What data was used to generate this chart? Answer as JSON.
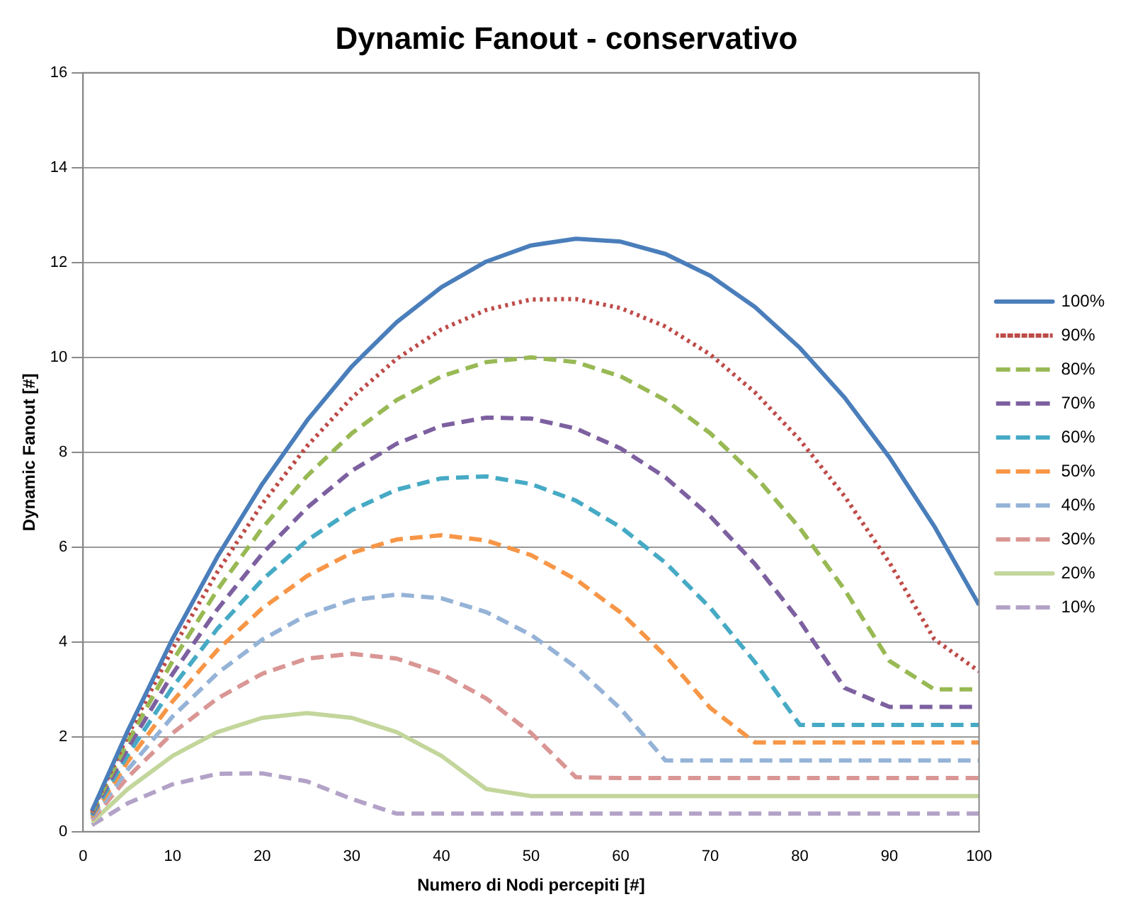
{
  "chart_data": {
    "type": "line",
    "title": "Dynamic Fanout - conservativo",
    "xlabel": "Numero di Nodi percepiti [#]",
    "ylabel": "Dynamic Fanout [#]",
    "x": [
      1,
      5,
      10,
      15,
      20,
      25,
      30,
      35,
      40,
      45,
      50,
      55,
      60,
      65,
      70,
      75,
      80,
      85,
      90,
      95,
      100
    ],
    "xlim": [
      0,
      100
    ],
    "xticks": [
      0,
      10,
      20,
      30,
      40,
      50,
      60,
      70,
      80,
      90,
      100
    ],
    "ylim": [
      0,
      16
    ],
    "yticks": [
      0,
      2,
      4,
      6,
      8,
      10,
      12,
      14,
      16
    ],
    "grid": "y",
    "legend": "right",
    "marker": "none",
    "series": [
      {
        "name": "100%",
        "color": "#4a7ebb",
        "line_style": "solid",
        "values": [
          0.44,
          2.13,
          4.07,
          5.8,
          7.33,
          8.67,
          9.81,
          10.74,
          11.48,
          12.02,
          12.36,
          12.5,
          12.44,
          12.18,
          11.72,
          11.06,
          10.2,
          9.15,
          7.89,
          6.44,
          4.78
        ]
      },
      {
        "name": "90%",
        "color": "#be4b48",
        "line_style": "dotted",
        "values": [
          0.42,
          2.03,
          3.86,
          5.48,
          6.91,
          8.13,
          9.15,
          9.97,
          10.59,
          11,
          11.22,
          11.23,
          11.04,
          10.65,
          10.06,
          9.26,
          8.26,
          7.07,
          5.67,
          4.06,
          3.38
        ]
      },
      {
        "name": "80%",
        "color": "#98b954",
        "line_style": "dashed",
        "values": [
          0.4,
          1.9,
          3.6,
          5.1,
          6.4,
          7.5,
          8.4,
          9.1,
          9.6,
          9.9,
          10,
          9.9,
          9.6,
          9.1,
          8.4,
          7.5,
          6.4,
          5.1,
          3.6,
          3,
          3
        ]
      },
      {
        "name": "70%",
        "color": "#7d60a0",
        "line_style": "dashed",
        "values": [
          0.37,
          1.76,
          3.33,
          4.69,
          5.86,
          6.83,
          7.61,
          8.18,
          8.56,
          8.73,
          8.71,
          8.5,
          8.08,
          7.47,
          6.65,
          5.64,
          4.44,
          3.03,
          2.63,
          2.63,
          2.63
        ]
      },
      {
        "name": "60%",
        "color": "#46aac5",
        "line_style": "dashed",
        "values": [
          0.34,
          1.62,
          3.05,
          4.28,
          5.31,
          6.14,
          6.78,
          7.21,
          7.45,
          7.49,
          7.33,
          6.98,
          6.42,
          5.67,
          4.72,
          3.57,
          2.25,
          2.25,
          2.25,
          2.25,
          2.25
        ]
      },
      {
        "name": "50%",
        "color": "#f79646",
        "line_style": "dashed",
        "values": [
          0.31,
          1.48,
          2.75,
          3.83,
          4.71,
          5.39,
          5.88,
          6.16,
          6.25,
          6.14,
          5.83,
          5.32,
          4.62,
          3.71,
          2.61,
          1.88,
          1.88,
          1.88,
          1.88,
          1.88,
          1.88
        ]
      },
      {
        "name": "40%",
        "color": "#95b3d7",
        "line_style": "dashed",
        "values": [
          0.28,
          1.31,
          2.43,
          3.34,
          4.05,
          4.57,
          4.88,
          5,
          4.92,
          4.63,
          4.15,
          3.47,
          2.59,
          1.5,
          1.5,
          1.5,
          1.5,
          1.5,
          1.5,
          1.5,
          1.5
        ]
      },
      {
        "name": "30%",
        "color": "#d99694",
        "line_style": "dashed",
        "values": [
          0.25,
          1.15,
          2.08,
          2.81,
          3.33,
          3.65,
          3.75,
          3.65,
          3.33,
          2.81,
          2.08,
          1.15,
          1.13,
          1.13,
          1.13,
          1.13,
          1.13,
          1.13,
          1.13,
          1.13,
          1.13
        ]
      },
      {
        "name": "20%",
        "color": "#c3d69b",
        "line_style": "solid",
        "values": [
          0.2,
          0.9,
          1.6,
          2.1,
          2.4,
          2.5,
          2.4,
          2.1,
          1.6,
          0.9,
          0.75,
          0.75,
          0.75,
          0.75,
          0.75,
          0.75,
          0.75,
          0.75,
          0.75,
          0.75,
          0.75
        ]
      },
      {
        "name": "10%",
        "color": "#b3a2c7",
        "line_style": "dashed",
        "values": [
          0.14,
          0.6,
          1,
          1.22,
          1.23,
          1.06,
          0.69,
          0.38,
          0.38,
          0.38,
          0.38,
          0.38,
          0.38,
          0.38,
          0.38,
          0.38,
          0.38,
          0.38,
          0.38,
          0.38,
          0.38
        ]
      }
    ]
  }
}
